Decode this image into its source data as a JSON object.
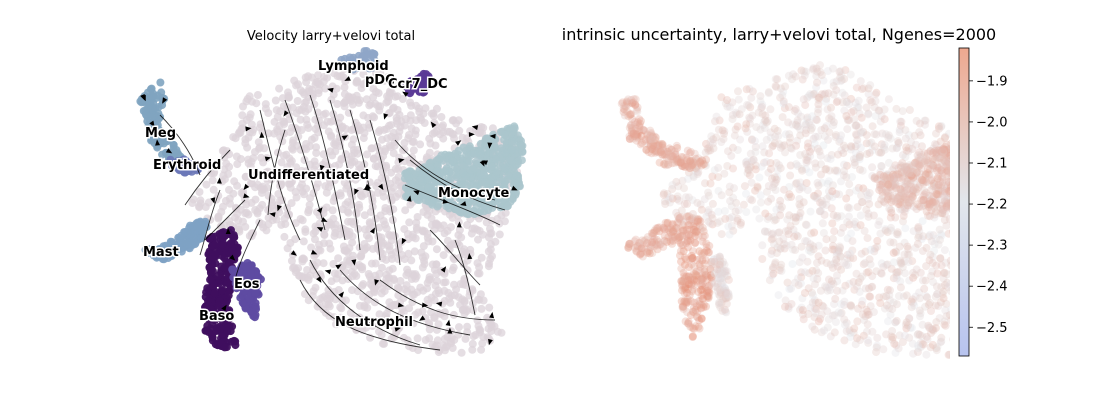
{
  "colors": {
    "background": "#ffffff",
    "undifferentiated": "#dcd3d9",
    "monocyte": "#aac6cd",
    "lymphoid": "#8fa6c8",
    "pdc": "#6f5aa8",
    "ccr7_dc": "#5b3a96",
    "meg": "#7fa4c0",
    "erythroid": "#6c78b8",
    "mast": "#7ea2c4",
    "eos": "#5e4ba2",
    "baso": "#3f0f5e",
    "neutrophil": "#dcd3d9",
    "streamline": "#000000",
    "cmap_low": "#b7c3ee",
    "cmap_mid": "#e2e6ec",
    "cmap_high": "#eea88f"
  },
  "chart_data": [
    {
      "type": "scatter",
      "title": "Velocity larry+velovi total",
      "xlabel": "",
      "ylabel": "",
      "grid": false,
      "legend": "on data",
      "clusters": [
        {
          "name": "Lymphoid",
          "color": "#8fa6c8"
        },
        {
          "name": "pDC",
          "color": "#6f5aa8"
        },
        {
          "name": "Ccr7_DC",
          "color": "#5b3a96"
        },
        {
          "name": "Meg",
          "color": "#7fa4c0"
        },
        {
          "name": "Erythroid",
          "color": "#6c78b8"
        },
        {
          "name": "Undifferentiated",
          "color": "#dcd3d9"
        },
        {
          "name": "Monocyte",
          "color": "#aac6cd"
        },
        {
          "name": "Mast",
          "color": "#7ea2c4"
        },
        {
          "name": "Eos",
          "color": "#5e4ba2"
        },
        {
          "name": "Baso",
          "color": "#3f0f5e"
        },
        {
          "name": "Neutrophil",
          "color": "#dcd3d9"
        }
      ],
      "overlay": "velocity streamlines"
    },
    {
      "type": "scatter",
      "title": "intrinsic uncertainty, larry+velovi total, Ngenes=2000",
      "xlabel": "",
      "ylabel": "",
      "grid": false,
      "colorbar": {
        "ticks": [
          -1.9,
          -2.0,
          -2.1,
          -2.2,
          -2.3,
          -2.4,
          -2.5
        ],
        "tick_labels": [
          "−1.9",
          "−2.0",
          "−2.1",
          "−2.2",
          "−2.3",
          "−2.4",
          "−2.5"
        ],
        "range": [
          -2.57,
          -1.82
        ],
        "colormap": "coolwarm"
      }
    }
  ]
}
